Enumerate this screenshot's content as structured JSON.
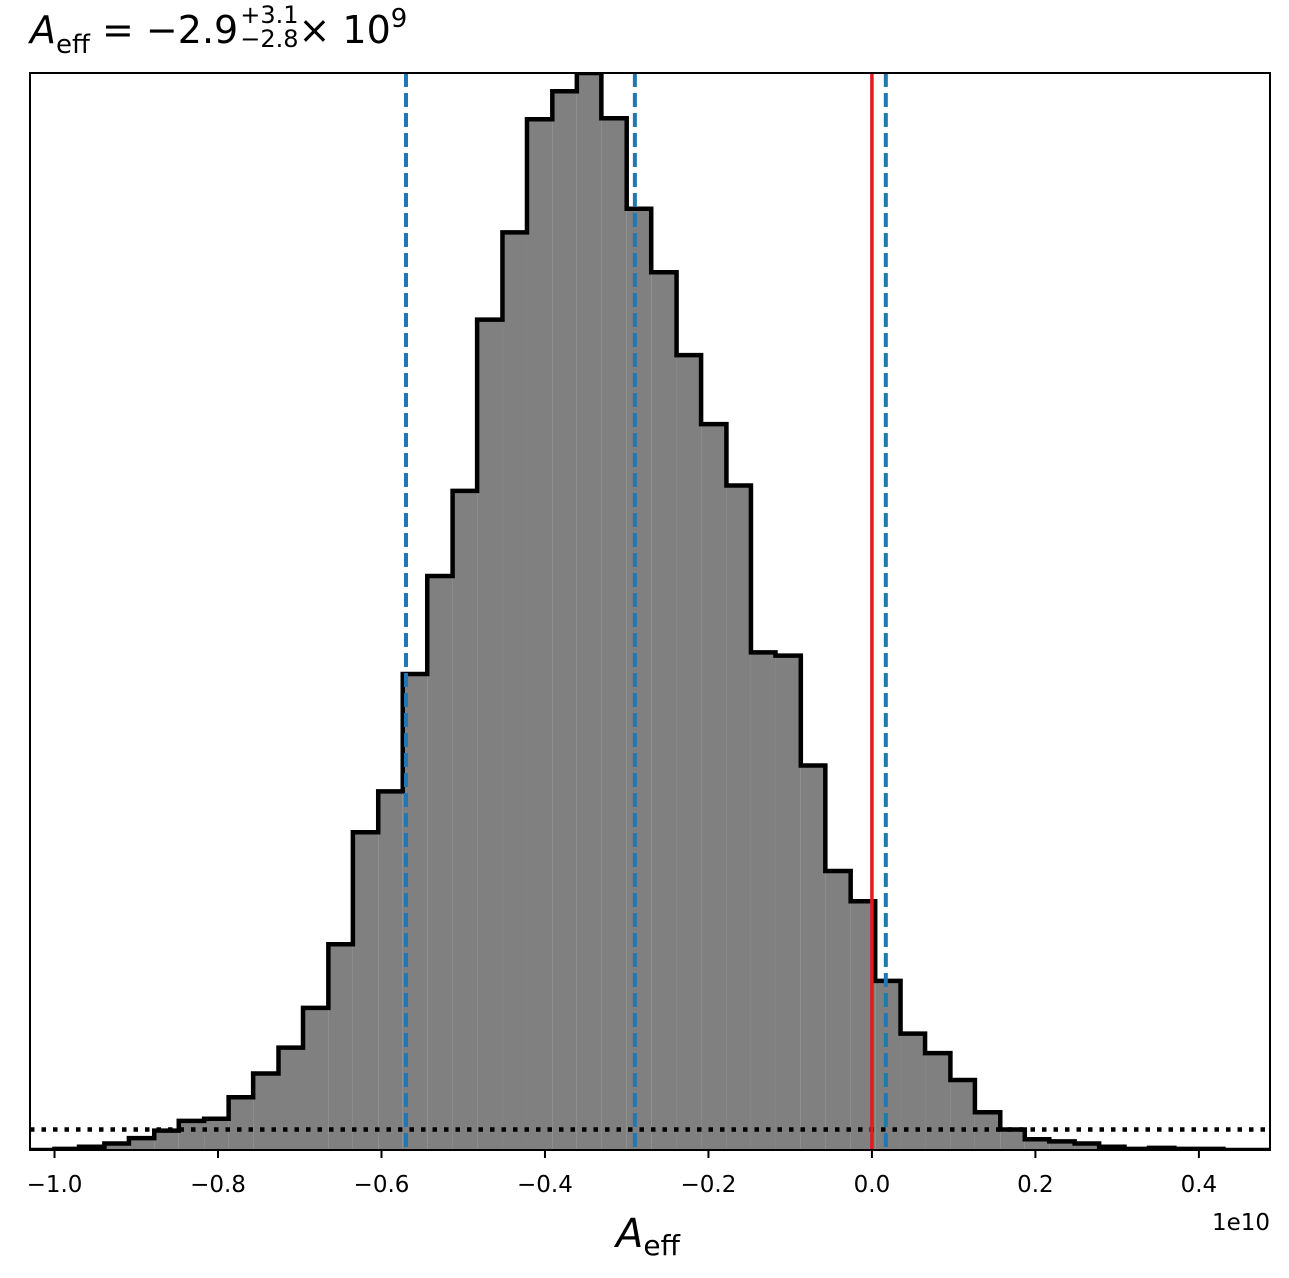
{
  "title": {
    "symbol": "A",
    "symbol_sub": "eff",
    "equals_value": "= −2.9",
    "plus_err": "+3.1",
    "minus_err": "−2.8",
    "times_base": "× 10",
    "exponent": "9"
  },
  "chart_data": {
    "type": "histogram",
    "xlabel_symbol": "A",
    "xlabel_sub": "eff",
    "x_offset_label": "1e10",
    "xlim": [
      -1.03,
      0.487
    ],
    "ylim": [
      0,
      1.0
    ],
    "x_ticks": [
      {
        "value": -1.0,
        "label": "−1.0"
      },
      {
        "value": -0.8,
        "label": "−0.8"
      },
      {
        "value": -0.6,
        "label": "−0.6"
      },
      {
        "value": -0.4,
        "label": "−0.4"
      },
      {
        "value": -0.2,
        "label": "−0.2"
      },
      {
        "value": 0.0,
        "label": "0.0"
      },
      {
        "value": 0.2,
        "label": "0.2"
      },
      {
        "value": 0.4,
        "label": "0.4"
      }
    ],
    "bin_edges": [
      -1.03,
      -1.0,
      -0.97,
      -0.939,
      -0.909,
      -0.878,
      -0.848,
      -0.817,
      -0.787,
      -0.757,
      -0.726,
      -0.696,
      -0.665,
      -0.635,
      -0.604,
      -0.574,
      -0.544,
      -0.513,
      -0.483,
      -0.452,
      -0.422,
      -0.391,
      -0.361,
      -0.331,
      -0.3,
      -0.27,
      -0.239,
      -0.209,
      -0.178,
      -0.148,
      -0.118,
      -0.087,
      -0.057,
      -0.026,
      0.004,
      0.035,
      0.065,
      0.096,
      0.126,
      0.157,
      0.187,
      0.217,
      0.248,
      0.278,
      0.309,
      0.339,
      0.37,
      0.4,
      0.43,
      0.461,
      0.487
    ],
    "bin_counts": [
      0.0,
      0.001,
      0.003,
      0.006,
      0.011,
      0.018,
      0.027,
      0.029,
      0.049,
      0.071,
      0.095,
      0.132,
      0.191,
      0.295,
      0.333,
      0.442,
      0.533,
      0.612,
      0.771,
      0.852,
      0.957,
      0.983,
      1.0,
      0.958,
      0.874,
      0.815,
      0.738,
      0.674,
      0.617,
      0.462,
      0.459,
      0.357,
      0.259,
      0.231,
      0.157,
      0.108,
      0.09,
      0.065,
      0.035,
      0.019,
      0.01,
      0.008,
      0.006,
      0.003,
      0.001,
      0.002,
      0.001,
      0.001,
      0.0,
      0.0
    ],
    "hist_fill_color": "#808080",
    "hist_edge_color": "#000000",
    "quantile_lines": [
      -0.57,
      -0.29,
      0.017
    ],
    "quantile_color": "#1f77b4",
    "truth_value": 0.0,
    "truth_color": "#e41a1c",
    "prior_level": 0.019,
    "prior_color": "#000000",
    "grid": false
  }
}
